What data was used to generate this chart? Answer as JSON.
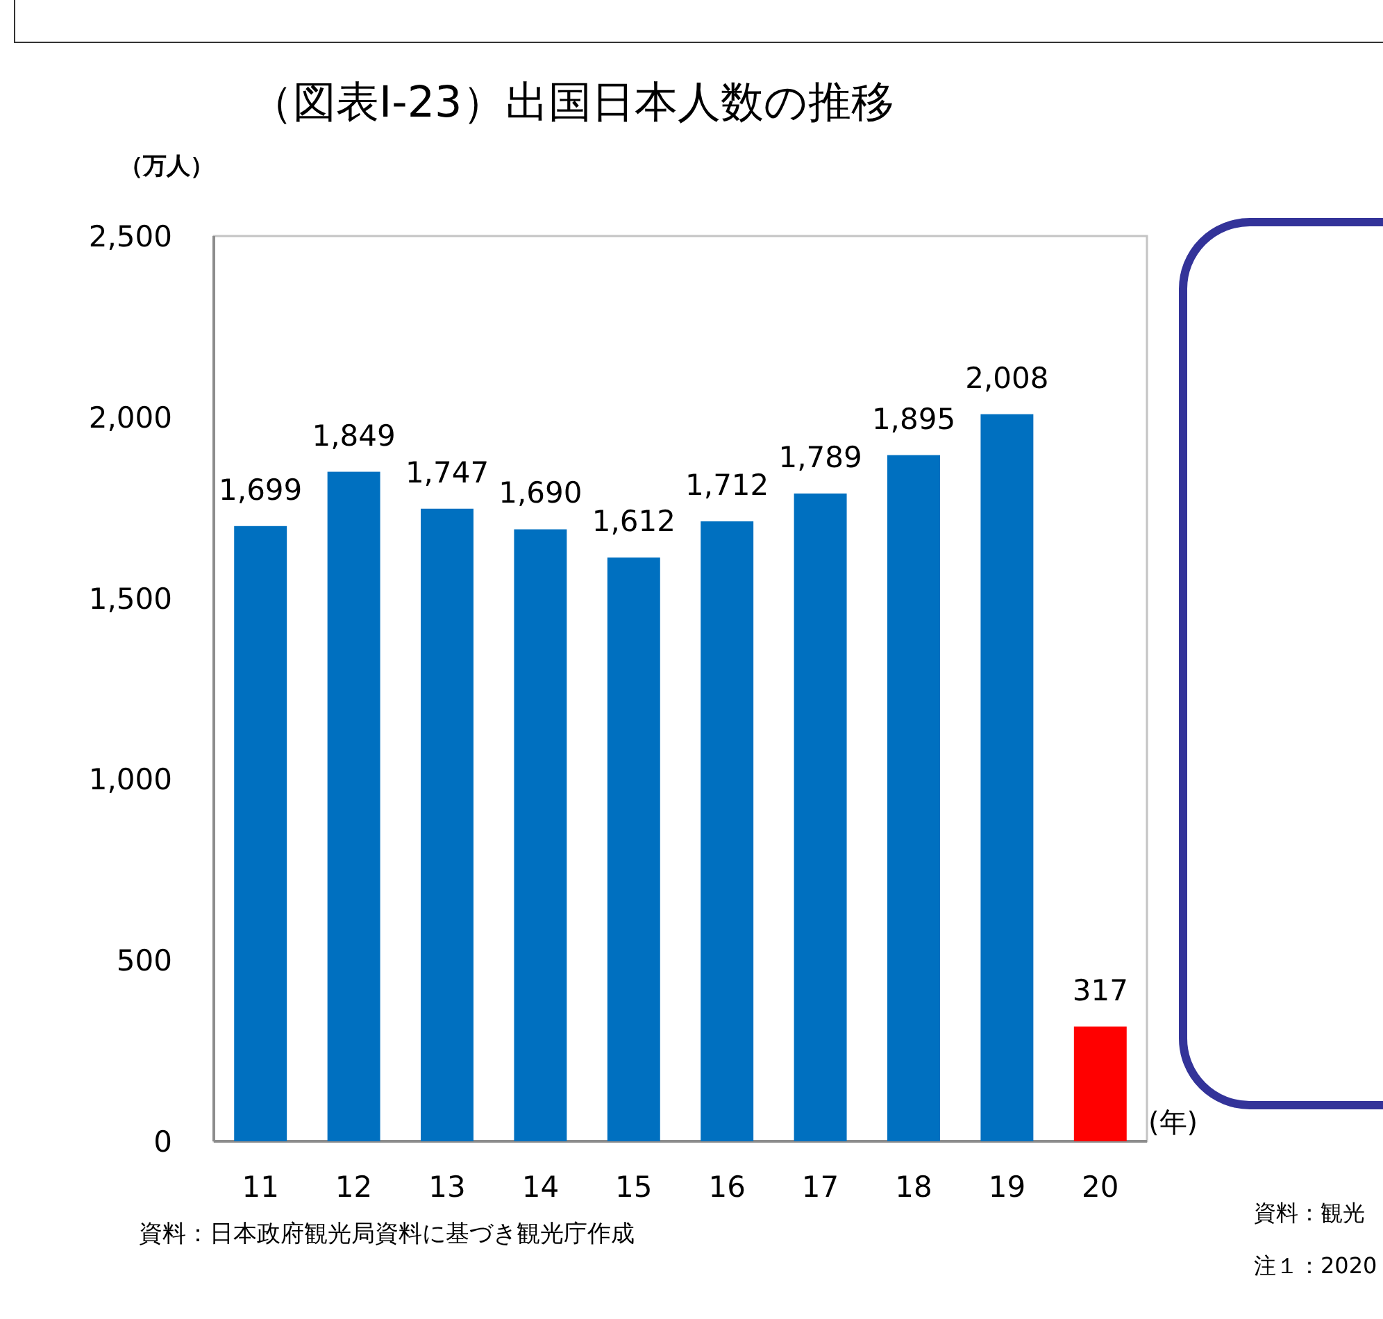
{
  "chart_data": {
    "type": "bar",
    "title": "（図表Ⅰ-23）出国日本人数の推移",
    "ylabel": "（万人）",
    "xlabel": "(年)",
    "categories": [
      "11",
      "12",
      "13",
      "14",
      "15",
      "16",
      "17",
      "18",
      "19",
      "20"
    ],
    "values": [
      1699,
      1849,
      1747,
      1690,
      1612,
      1712,
      1789,
      1895,
      2008,
      317
    ],
    "colors": [
      "#0070c0",
      "#0070c0",
      "#0070c0",
      "#0070c0",
      "#0070c0",
      "#0070c0",
      "#0070c0",
      "#0070c0",
      "#0070c0",
      "#ff0000"
    ],
    "value_labels": [
      "1,699",
      "1,849",
      "1,747",
      "1,690",
      "1,612",
      "1,712",
      "1,789",
      "1,895",
      "2,008",
      "317"
    ],
    "ylim": [
      0,
      2500
    ],
    "yticks": [
      0,
      500,
      {
        "value": 1000,
        "label": "1,000"
      },
      {
        "value": 1500,
        "label": "1,500"
      },
      {
        "value": 2000,
        "label": "2,000"
      },
      {
        "value": 2500,
        "label": "2,500"
      }
    ],
    "annotations": [
      "資料：日本政府観光局資料に基づき観光庁作成",
      "資料：観光",
      "注１：2020"
    ]
  }
}
